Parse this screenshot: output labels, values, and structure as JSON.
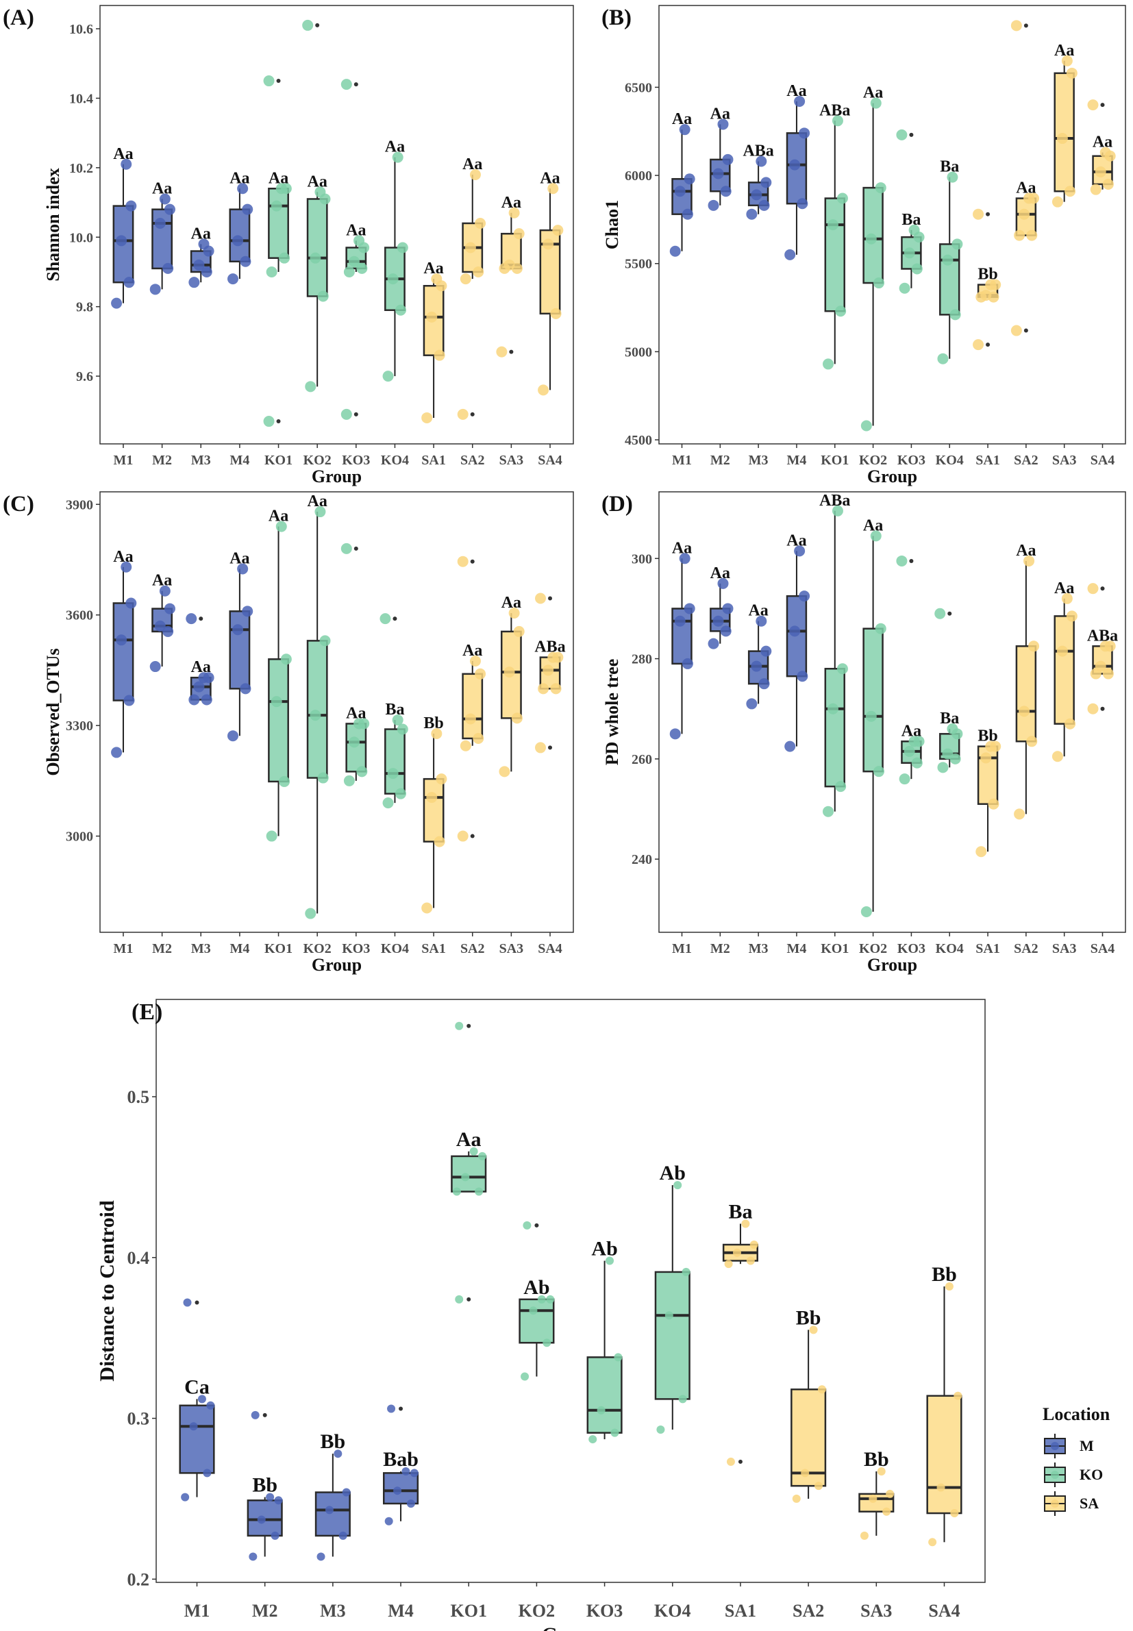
{
  "legend": {
    "title": "Location",
    "items": [
      {
        "label": "M",
        "fill": "#6b80c2",
        "point": "#4a63b5"
      },
      {
        "label": "KO",
        "fill": "#97d8b9",
        "point": "#7fd0a8"
      },
      {
        "label": "SA",
        "fill": "#fde19a",
        "point": "#f9d57c"
      }
    ]
  },
  "chart_data": [
    {
      "panel": "(A)",
      "type": "box",
      "xlabel": "Group",
      "ylabel": "Shannon index",
      "categories": [
        "M1",
        "M2",
        "M3",
        "M4",
        "KO1",
        "KO2",
        "KO3",
        "KO4",
        "SA1",
        "SA2",
        "SA3",
        "SA4"
      ],
      "location": [
        "M",
        "M",
        "M",
        "M",
        "KO",
        "KO",
        "KO",
        "KO",
        "SA",
        "SA",
        "SA",
        "SA"
      ],
      "ylim": [
        9.405,
        10.667
      ],
      "yticks": [
        9.6,
        9.8,
        10.0,
        10.2,
        10.4,
        10.6
      ],
      "ytick_labels": [
        "9.6",
        "9.8",
        "10.0",
        "10.2",
        "10.4",
        "10.6"
      ],
      "boxes": [
        {
          "min": 9.81,
          "q1": 9.87,
          "median": 9.99,
          "q3": 10.09,
          "max": 10.21
        },
        {
          "min": 9.85,
          "q1": 9.91,
          "median": 10.04,
          "q3": 10.08,
          "max": 10.11
        },
        {
          "min": 9.87,
          "q1": 9.9,
          "median": 9.92,
          "q3": 9.96,
          "max": 9.98
        },
        {
          "min": 9.88,
          "q1": 9.93,
          "median": 9.99,
          "q3": 10.08,
          "max": 10.14
        },
        {
          "min": 9.9,
          "q1": 9.94,
          "median": 10.09,
          "q3": 10.14,
          "max": 10.14
        },
        {
          "min": 9.57,
          "q1": 9.83,
          "median": 9.94,
          "q3": 10.11,
          "max": 10.13
        },
        {
          "min": 9.9,
          "q1": 9.91,
          "median": 9.93,
          "q3": 9.97,
          "max": 9.99
        },
        {
          "min": 9.6,
          "q1": 9.79,
          "median": 9.88,
          "q3": 9.97,
          "max": 10.23
        },
        {
          "min": 9.48,
          "q1": 9.66,
          "median": 9.77,
          "q3": 9.86,
          "max": 9.88
        },
        {
          "min": 9.88,
          "q1": 9.9,
          "median": 9.97,
          "q3": 10.04,
          "max": 10.18
        },
        {
          "min": 9.91,
          "q1": 9.91,
          "median": 9.92,
          "q3": 10.01,
          "max": 10.07
        },
        {
          "min": 9.56,
          "q1": 9.78,
          "median": 9.98,
          "q3": 10.02,
          "max": 10.14
        }
      ],
      "outliers": [
        [
          4,
          10.45
        ],
        [
          4,
          9.47
        ],
        [
          5,
          10.61
        ],
        [
          6,
          10.44
        ],
        [
          6,
          9.49
        ],
        [
          9,
          9.49
        ],
        [
          10,
          9.67
        ]
      ],
      "letters": [
        "Aa",
        "Aa",
        "Aa",
        "Aa",
        "Aa",
        "Aa",
        "Aa",
        "Aa",
        "Aa",
        "Aa",
        "Aa",
        "Aa"
      ]
    },
    {
      "panel": "(B)",
      "type": "box",
      "xlabel": "Group",
      "ylabel": "Chao1",
      "categories": [
        "M1",
        "M2",
        "M3",
        "M4",
        "KO1",
        "KO2",
        "KO3",
        "KO4",
        "SA1",
        "SA2",
        "SA3",
        "SA4"
      ],
      "location": [
        "M",
        "M",
        "M",
        "M",
        "KO",
        "KO",
        "KO",
        "KO",
        "SA",
        "SA",
        "SA",
        "SA"
      ],
      "ylim": [
        4477,
        6964
      ],
      "yticks": [
        4500,
        5000,
        5500,
        6000,
        6500
      ],
      "ytick_labels": [
        "4500",
        "5000",
        "5500",
        "6000",
        "6500"
      ],
      "boxes": [
        {
          "min": 5570,
          "q1": 5780,
          "median": 5910,
          "q3": 5980,
          "max": 6260
        },
        {
          "min": 5830,
          "q1": 5910,
          "median": 6010,
          "q3": 6090,
          "max": 6290
        },
        {
          "min": 5780,
          "q1": 5830,
          "median": 5890,
          "q3": 5960,
          "max": 6080
        },
        {
          "min": 5550,
          "q1": 5840,
          "median": 6060,
          "q3": 6240,
          "max": 6420
        },
        {
          "min": 4930,
          "q1": 5230,
          "median": 5720,
          "q3": 5870,
          "max": 6310
        },
        {
          "min": 4580,
          "q1": 5390,
          "median": 5640,
          "q3": 5930,
          "max": 6410
        },
        {
          "min": 5360,
          "q1": 5470,
          "median": 5560,
          "q3": 5650,
          "max": 5690
        },
        {
          "min": 4960,
          "q1": 5210,
          "median": 5520,
          "q3": 5610,
          "max": 5990
        },
        {
          "min": 5310,
          "q1": 5310,
          "median": 5320,
          "q3": 5380,
          "max": 5380
        },
        {
          "min": 5660,
          "q1": 5660,
          "median": 5780,
          "q3": 5870,
          "max": 5870
        },
        {
          "min": 5850,
          "q1": 5910,
          "median": 6210,
          "q3": 6580,
          "max": 6650
        },
        {
          "min": 5920,
          "q1": 5950,
          "median": 6020,
          "q3": 6110,
          "max": 6130
        }
      ],
      "outliers": [
        [
          6,
          6230
        ],
        [
          8,
          5780
        ],
        [
          8,
          5040
        ],
        [
          9,
          6850
        ],
        [
          9,
          5120
        ],
        [
          11,
          6400
        ]
      ],
      "letters": [
        "Aa",
        "Aa",
        "ABa",
        "Aa",
        "ABa",
        "Aa",
        "Ba",
        "Ba",
        "Bb",
        "Aa",
        "Aa",
        "Aa"
      ]
    },
    {
      "panel": "(C)",
      "type": "box",
      "xlabel": "Group",
      "ylabel": "Observed_OTUs",
      "categories": [
        "M1",
        "M2",
        "M3",
        "M4",
        "KO1",
        "KO2",
        "KO3",
        "KO4",
        "SA1",
        "SA2",
        "SA3",
        "SA4"
      ],
      "location": [
        "M",
        "M",
        "M",
        "M",
        "KO",
        "KO",
        "KO",
        "KO",
        "SA",
        "SA",
        "SA",
        "SA"
      ],
      "ylim": [
        2739,
        3934
      ],
      "yticks": [
        3000,
        3300,
        3600,
        3900
      ],
      "ytick_labels": [
        "3000",
        "3300",
        "3600",
        "3900"
      ],
      "boxes": [
        {
          "min": 3227,
          "q1": 3368,
          "median": 3532,
          "q3": 3632,
          "max": 3730
        },
        {
          "min": 3460,
          "q1": 3555,
          "median": 3570,
          "q3": 3617,
          "max": 3665
        },
        {
          "min": 3370,
          "q1": 3370,
          "median": 3405,
          "q3": 3430,
          "max": 3430
        },
        {
          "min": 3272,
          "q1": 3400,
          "median": 3560,
          "q3": 3610,
          "max": 3725
        },
        {
          "min": 3000,
          "q1": 3148,
          "median": 3365,
          "q3": 3480,
          "max": 3840
        },
        {
          "min": 2790,
          "q1": 3158,
          "median": 3328,
          "q3": 3530,
          "max": 3880
        },
        {
          "min": 3150,
          "q1": 3175,
          "median": 3255,
          "q3": 3305,
          "max": 3305
        },
        {
          "min": 3090,
          "q1": 3115,
          "median": 3170,
          "q3": 3290,
          "max": 3315
        },
        {
          "min": 2805,
          "q1": 2985,
          "median": 3105,
          "q3": 3155,
          "max": 3278
        },
        {
          "min": 3245,
          "q1": 3265,
          "median": 3318,
          "q3": 3440,
          "max": 3475
        },
        {
          "min": 3175,
          "q1": 3320,
          "median": 3445,
          "q3": 3555,
          "max": 3605
        },
        {
          "min": 3400,
          "q1": 3400,
          "median": 3450,
          "q3": 3485,
          "max": 3485
        }
      ],
      "outliers": [
        [
          2,
          3590
        ],
        [
          6,
          3780
        ],
        [
          7,
          3590
        ],
        [
          9,
          3745
        ],
        [
          9,
          3000
        ],
        [
          11,
          3645
        ],
        [
          11,
          3240
        ]
      ],
      "letters": [
        "Aa",
        "Aa",
        "Aa",
        "Aa",
        "Aa",
        "Aa",
        "Aa",
        "Ba",
        "Bb",
        "Aa",
        "Aa",
        "ABa"
      ]
    },
    {
      "panel": "(D)",
      "type": "box",
      "xlabel": "Group",
      "ylabel": "PD whole tree",
      "categories": [
        "M1",
        "M2",
        "M3",
        "M4",
        "KO1",
        "KO2",
        "KO3",
        "KO4",
        "SA1",
        "SA2",
        "SA3",
        "SA4"
      ],
      "location": [
        "M",
        "M",
        "M",
        "M",
        "KO",
        "KO",
        "KO",
        "KO",
        "SA",
        "SA",
        "SA",
        "SA"
      ],
      "ylim": [
        225.4,
        313.3
      ],
      "yticks": [
        240,
        260,
        280,
        300
      ],
      "ytick_labels": [
        "240",
        "260",
        "280",
        "300"
      ],
      "boxes": [
        {
          "min": 265,
          "q1": 279,
          "median": 287.5,
          "q3": 290,
          "max": 300
        },
        {
          "min": 283,
          "q1": 285.5,
          "median": 287.5,
          "q3": 290,
          "max": 295
        },
        {
          "min": 271,
          "q1": 275,
          "median": 278.5,
          "q3": 281.5,
          "max": 287.5
        },
        {
          "min": 262.5,
          "q1": 276.5,
          "median": 285.5,
          "q3": 292.5,
          "max": 301.5
        },
        {
          "min": 249.5,
          "q1": 254.5,
          "median": 270,
          "q3": 278,
          "max": 309.5
        },
        {
          "min": 229.5,
          "q1": 257.5,
          "median": 268.5,
          "q3": 286,
          "max": 304.5
        },
        {
          "min": 256,
          "q1": 259.2,
          "median": 261.5,
          "q3": 263.5,
          "max": 263.5
        },
        {
          "min": 258.3,
          "q1": 260,
          "median": 261,
          "q3": 265,
          "max": 266
        },
        {
          "min": 241.5,
          "q1": 251,
          "median": 260.2,
          "q3": 262.5,
          "max": 262.5
        },
        {
          "min": 249,
          "q1": 263.5,
          "median": 269.5,
          "q3": 282.5,
          "max": 299.5
        },
        {
          "min": 260.5,
          "q1": 267,
          "median": 281.5,
          "q3": 288.5,
          "max": 292
        },
        {
          "min": 277,
          "q1": 277,
          "median": 278.5,
          "q3": 282.5,
          "max": 282.5
        }
      ],
      "outliers": [
        [
          6,
          299.5
        ],
        [
          7,
          289
        ],
        [
          11,
          294
        ],
        [
          11,
          270
        ]
      ],
      "letters": [
        "Aa",
        "Aa",
        "Aa",
        "Aa",
        "ABa",
        "Aa",
        "Aa",
        "Ba",
        "Bb",
        "Aa",
        "Aa",
        "ABa"
      ]
    },
    {
      "panel": "(E)",
      "type": "box",
      "xlabel": "Group",
      "ylabel": "Distance to Centroid",
      "categories": [
        "M1",
        "M2",
        "M3",
        "M4",
        "KO1",
        "KO2",
        "KO3",
        "KO4",
        "SA1",
        "SA2",
        "SA3",
        "SA4"
      ],
      "location": [
        "M",
        "M",
        "M",
        "M",
        "KO",
        "KO",
        "KO",
        "KO",
        "SA",
        "SA",
        "SA",
        "SA"
      ],
      "ylim": [
        0.198,
        0.5605
      ],
      "yticks": [
        0.2,
        0.3,
        0.4,
        0.5
      ],
      "ytick_labels": [
        "0.2",
        "0.3",
        "0.4",
        "0.5"
      ],
      "boxes": [
        {
          "min": 0.251,
          "q1": 0.266,
          "median": 0.295,
          "q3": 0.308,
          "max": 0.312
        },
        {
          "min": 0.214,
          "q1": 0.227,
          "median": 0.237,
          "q3": 0.249,
          "max": 0.251
        },
        {
          "min": 0.214,
          "q1": 0.227,
          "median": 0.243,
          "q3": 0.254,
          "max": 0.278
        },
        {
          "min": 0.236,
          "q1": 0.247,
          "median": 0.255,
          "q3": 0.266,
          "max": 0.267
        },
        {
          "min": 0.441,
          "q1": 0.441,
          "median": 0.45,
          "q3": 0.463,
          "max": 0.466
        },
        {
          "min": 0.326,
          "q1": 0.347,
          "median": 0.367,
          "q3": 0.374,
          "max": 0.374
        },
        {
          "min": 0.287,
          "q1": 0.291,
          "median": 0.305,
          "q3": 0.338,
          "max": 0.398
        },
        {
          "min": 0.293,
          "q1": 0.312,
          "median": 0.364,
          "q3": 0.391,
          "max": 0.445
        },
        {
          "min": 0.396,
          "q1": 0.398,
          "median": 0.403,
          "q3": 0.408,
          "max": 0.421
        },
        {
          "min": 0.25,
          "q1": 0.258,
          "median": 0.266,
          "q3": 0.318,
          "max": 0.355
        },
        {
          "min": 0.227,
          "q1": 0.242,
          "median": 0.25,
          "q3": 0.253,
          "max": 0.267
        },
        {
          "min": 0.223,
          "q1": 0.241,
          "median": 0.257,
          "q3": 0.314,
          "max": 0.382
        }
      ],
      "outliers": [
        [
          0,
          0.372
        ],
        [
          1,
          0.302
        ],
        [
          3,
          0.306
        ],
        [
          4,
          0.544
        ],
        [
          4,
          0.374
        ],
        [
          5,
          0.42
        ],
        [
          8,
          0.273
        ]
      ],
      "letters": [
        "Ca",
        "Bb",
        "Bb",
        "Bab",
        "Aa",
        "Ab",
        "Ab",
        "Ab",
        "Ba",
        "Bb",
        "Bb",
        "Bb"
      ]
    }
  ]
}
